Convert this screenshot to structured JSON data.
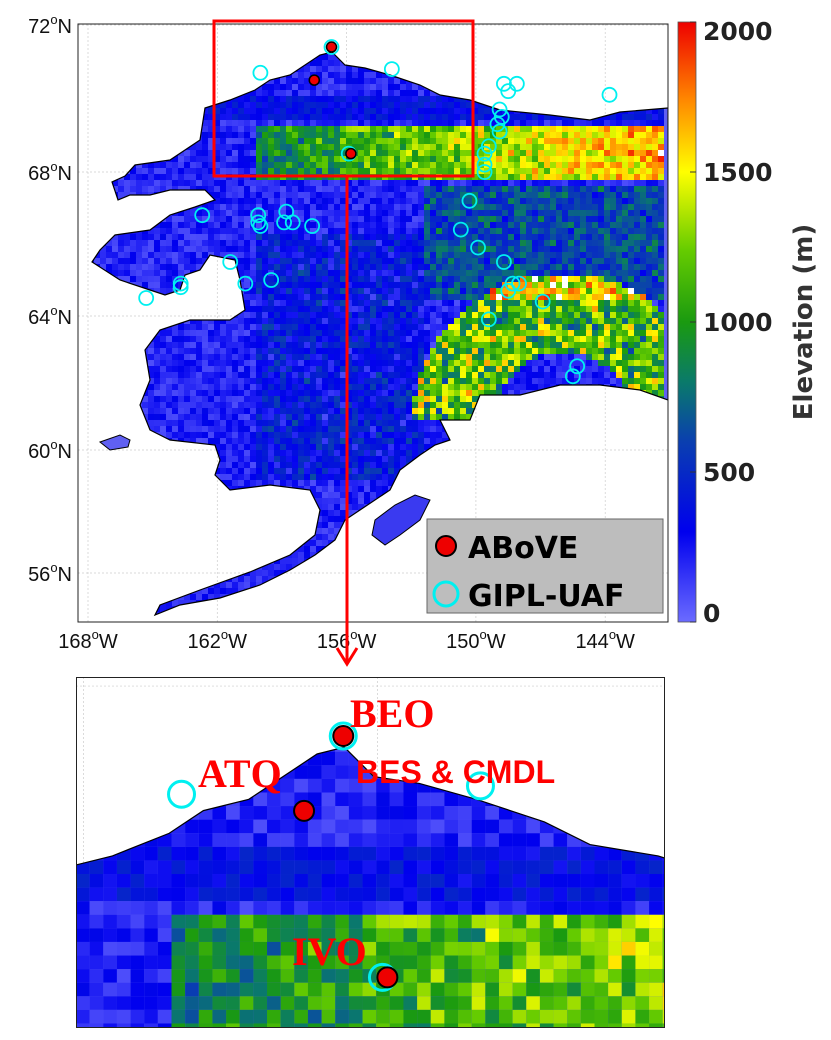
{
  "map": {
    "type": "elevation map with station markers",
    "lon_ticks": [
      "168",
      "162",
      "156",
      "150",
      "144"
    ],
    "lon_suffix": "W",
    "lat_ticks": [
      "72",
      "68",
      "64",
      "60",
      "56"
    ],
    "lat_suffix": "N",
    "degree_symbol": "o",
    "lon_tick_values": [
      -168,
      -162,
      -156,
      -150,
      -144
    ],
    "lat_tick_values": [
      72,
      68,
      64,
      60,
      56
    ],
    "zoom_box": {
      "lon_range": [
        -162.2,
        -150.1
      ],
      "lat_range": [
        68.0,
        72.1
      ],
      "color": "#ff0000"
    }
  },
  "colorbar": {
    "label": "Elevation (m)",
    "ticks": [
      "2000",
      "1500",
      "1000",
      "500",
      "0"
    ],
    "range": [
      0,
      2000
    ],
    "colors": [
      "#6b6bff",
      "#0000ee",
      "#0a7a6a",
      "#33aa00",
      "#ffff00",
      "#ff8800",
      "#ee0000"
    ]
  },
  "legend": {
    "items": [
      {
        "label": "ABoVE",
        "marker": "filled-red-circle",
        "color": "#ee0000"
      },
      {
        "label": "GIPL-UAF",
        "marker": "open-cyan-circle",
        "color": "#00f0f0"
      }
    ]
  },
  "stations": {
    "above": [
      {
        "lon": -156.7,
        "lat": 71.4
      },
      {
        "lon": -157.5,
        "lat": 70.5
      },
      {
        "lon": -155.8,
        "lat": 68.5
      }
    ],
    "gipl": [
      [
        -160.0,
        70.7
      ],
      [
        -153.9,
        70.8
      ],
      [
        -148.7,
        70.4
      ],
      [
        -148.5,
        70.2
      ],
      [
        -148.1,
        70.4
      ],
      [
        -143.8,
        70.1
      ],
      [
        -148.9,
        69.7
      ],
      [
        -148.8,
        69.5
      ],
      [
        -149.0,
        69.3
      ],
      [
        -148.9,
        69.1
      ],
      [
        -149.4,
        68.7
      ],
      [
        -149.6,
        68.5
      ],
      [
        -149.6,
        68.2
      ],
      [
        -149.6,
        68.0
      ],
      [
        -150.3,
        67.2
      ],
      [
        -150.7,
        66.4
      ],
      [
        -149.9,
        65.9
      ],
      [
        -148.7,
        65.5
      ],
      [
        -148.3,
        64.9
      ],
      [
        -148.0,
        64.9
      ],
      [
        -148.5,
        64.7
      ],
      [
        -146.9,
        64.4
      ],
      [
        -149.4,
        63.9
      ],
      [
        -145.3,
        62.5
      ],
      [
        -145.5,
        62.2
      ],
      [
        -162.7,
        66.8
      ],
      [
        -160.1,
        66.8
      ],
      [
        -160.1,
        66.6
      ],
      [
        -160.0,
        66.5
      ],
      [
        -158.8,
        66.9
      ],
      [
        -158.9,
        66.6
      ],
      [
        -158.5,
        66.6
      ],
      [
        -157.6,
        66.5
      ],
      [
        -161.4,
        65.5
      ],
      [
        -160.7,
        64.9
      ],
      [
        -159.5,
        65.0
      ],
      [
        -163.7,
        64.9
      ],
      [
        -163.7,
        64.8
      ],
      [
        -165.3,
        64.5
      ],
      [
        -156.7,
        71.4
      ],
      [
        -155.9,
        68.5
      ]
    ]
  },
  "inset": {
    "labels": {
      "beo": "BEO",
      "atq": "ATQ",
      "bes": "BES & CMDL",
      "ivo": "IVO"
    }
  }
}
